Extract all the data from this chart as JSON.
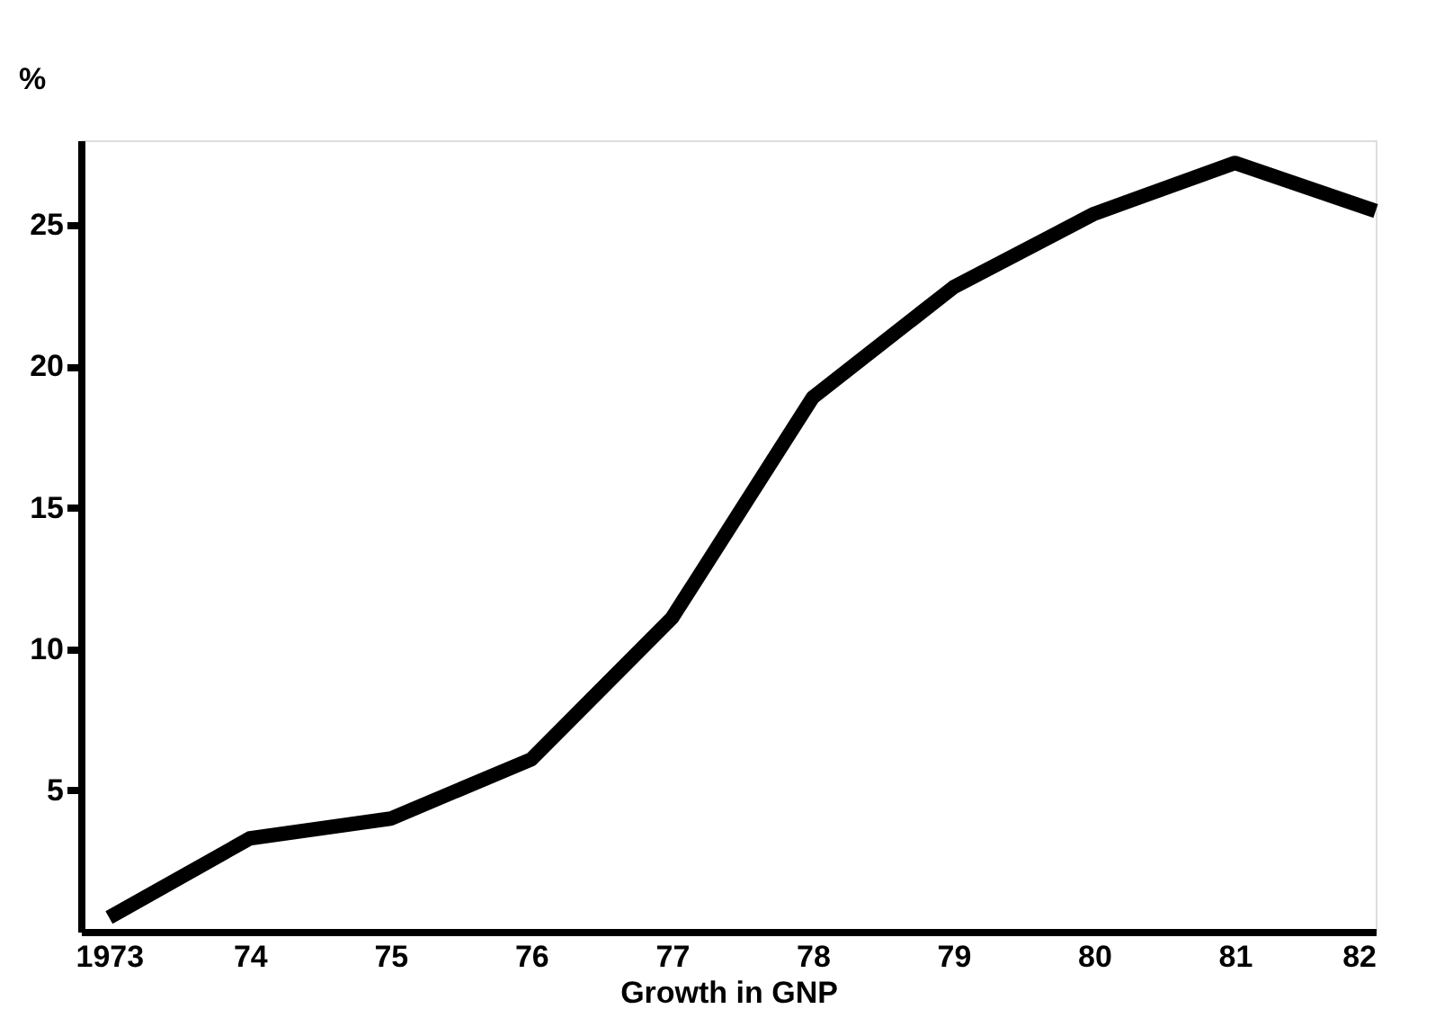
{
  "chart_data": {
    "type": "line",
    "ylabel": "%",
    "xlabel": "Growth in GNP",
    "categories": [
      "1973",
      "74",
      "75",
      "76",
      "77",
      "78",
      "79",
      "80",
      "81",
      "82"
    ],
    "series": [
      {
        "color": "#000000",
        "values": [
          0.5,
          3.3,
          4.0,
          6.1,
          11.1,
          18.9,
          22.8,
          25.4,
          27.2,
          25.5
        ]
      }
    ],
    "ylim": [
      0,
      28
    ],
    "yticks": [
      5,
      10,
      15,
      20,
      25
    ],
    "grid": false,
    "marker": "none",
    "line_style": "solid"
  }
}
